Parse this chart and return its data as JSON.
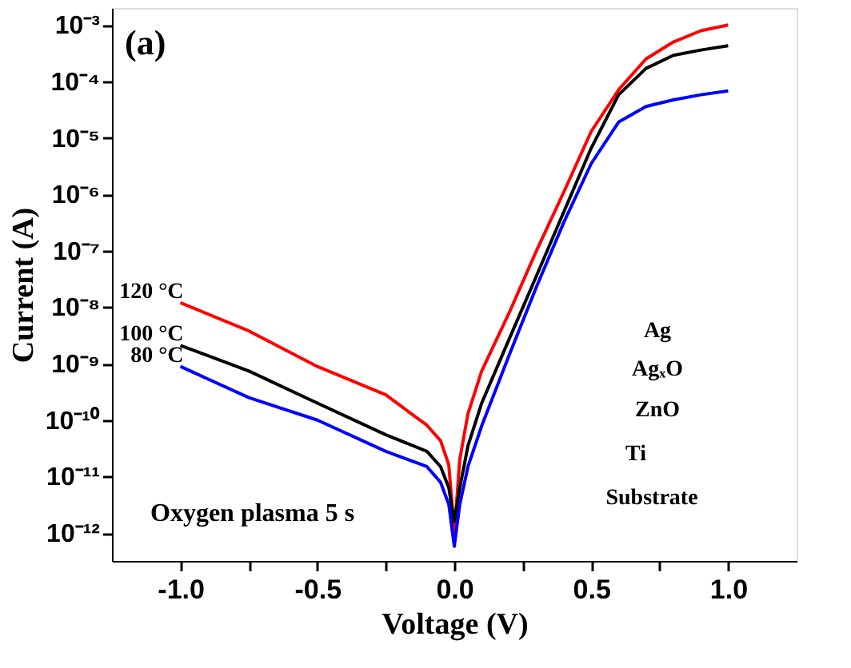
{
  "chart_data": {
    "type": "line",
    "xlabel": "Voltage (V)",
    "ylabel": "Current (A)",
    "log": "y",
    "grid": false,
    "legend": false,
    "marker": "none",
    "line_style": "solid",
    "x": [
      -1,
      -0.75,
      -0.5,
      -0.25,
      -0.1,
      -0.05,
      -0.02,
      0,
      0.02,
      0.05,
      0.1,
      0.2,
      0.3,
      0.4,
      0.5,
      0.6,
      0.7,
      0.8,
      0.9,
      1.0
    ],
    "series": [
      {
        "name": "120 °C",
        "color": "#ff0000",
        "values": [
          1.2e-08,
          3.8e-09,
          8.9e-10,
          2.8e-10,
          8.1e-11,
          4.3e-11,
          1.6e-11,
          1e-12,
          2e-11,
          1.3e-10,
          7.4e-10,
          7.9e-09,
          1e-07,
          1.1e-06,
          1.3e-05,
          7.1e-05,
          0.00025,
          0.0005,
          0.00079,
          0.001
        ]
      },
      {
        "name": "100 °C",
        "color": "#000000",
        "values": [
          2.1e-09,
          7.4e-10,
          2e-10,
          5.5e-11,
          2.8e-11,
          1.5e-11,
          6.3e-12,
          1.6e-12,
          6.3e-12,
          3.5e-11,
          2e-10,
          2.7e-09,
          3.6e-08,
          4.9e-07,
          6.6e-06,
          5.8e-05,
          0.00017,
          0.00029,
          0.00036,
          0.00043
        ]
      },
      {
        "name": "80 °C",
        "color": "#0000ff",
        "values": [
          8.9e-10,
          2.5e-10,
          1e-10,
          2.8e-11,
          1.5e-11,
          7.9e-12,
          3.2e-12,
          5.8e-13,
          3.2e-12,
          1.5e-11,
          7.9e-11,
          1.4e-09,
          2.3e-08,
          3.2e-07,
          3.5e-06,
          1.9e-05,
          3.6e-05,
          4.7e-05,
          5.8e-05,
          6.8e-05
        ]
      }
    ],
    "xlim": [
      -1.25,
      1.25
    ],
    "xticks": [
      {
        "value": -1.0,
        "label": "-1.0"
      },
      {
        "value": -0.75,
        "label": null
      },
      {
        "value": -0.5,
        "label": "-0.5"
      },
      {
        "value": -0.25,
        "label": null
      },
      {
        "value": 0.0,
        "label": "0.0"
      },
      {
        "value": 0.25,
        "label": null
      },
      {
        "value": 0.5,
        "label": "0.5"
      },
      {
        "value": 0.75,
        "label": null
      },
      {
        "value": 1.0,
        "label": "1.0"
      }
    ],
    "ylim": [
      3.2e-13,
      0.002
    ],
    "yticks": [
      {
        "value": 1e-12,
        "label": "10⁻¹²"
      },
      {
        "value": 1e-11,
        "label": "10⁻¹¹"
      },
      {
        "value": 1e-10,
        "label": "10⁻¹⁰"
      },
      {
        "value": 1e-09,
        "label": "10⁻⁹"
      },
      {
        "value": 1e-08,
        "label": "10⁻⁸"
      },
      {
        "value": 1e-07,
        "label": "10⁻⁷"
      },
      {
        "value": 1e-06,
        "label": "10⁻⁶"
      },
      {
        "value": 1e-05,
        "label": "10⁻⁵"
      },
      {
        "value": 0.0001,
        "label": "10⁻⁴"
      },
      {
        "value": 0.001,
        "label": "10⁻³"
      }
    ],
    "annotations": [
      "(a)",
      "Oxygen plasma 5 s",
      "Ag",
      "AgₓO",
      "ZnO",
      "Ti",
      "Substrate"
    ]
  }
}
